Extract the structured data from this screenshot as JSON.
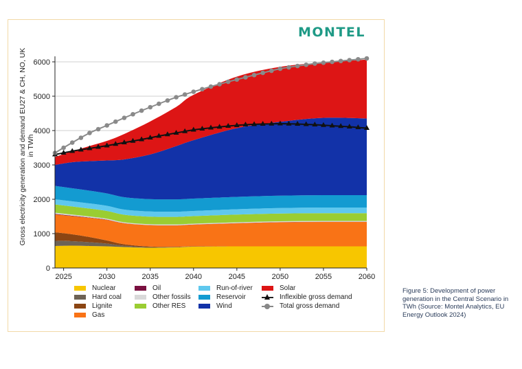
{
  "logo": "MONTEL",
  "caption": "Figure 5: Development of power generation in the Central Scenario in TWh (Source: Montel Analytics, EU Energy Outlook 2024)",
  "colors": {
    "Nuclear": "#f7c600",
    "Hard coal": "#6d6255",
    "Lignite": "#8b4513",
    "Gas": "#f97316",
    "Oil": "#7a1040",
    "Other fossils": "#d9d9d9",
    "Other RES": "#9acd32",
    "Run-of-river": "#5fc8ee",
    "Reservoir": "#139bd1",
    "Wind": "#1232a8",
    "Solar": "#dd1515",
    "Inflexible gross demand": "#111111",
    "Total gross demand": "#8a8a8a"
  },
  "legend": [
    [
      "Nuclear",
      "Hard coal",
      "Lignite",
      "Gas"
    ],
    [
      "Oil",
      "Other fossils",
      "Other RES"
    ],
    [
      "Run-of-river",
      "Reservoir",
      "Wind"
    ],
    [
      "Solar",
      "Inflexible gross demand",
      "Total gross demand"
    ]
  ],
  "chart_data": {
    "type": "area",
    "title": "",
    "xlabel": "",
    "ylabel": "Gross electricity generation and demand EU27 & CH, NO, UK in TWh",
    "xlim": [
      2024,
      2060
    ],
    "ylim": [
      0,
      6000
    ],
    "xticks": [
      2025,
      2030,
      2035,
      2040,
      2045,
      2050,
      2055,
      2060
    ],
    "yticks": [
      0,
      1000,
      2000,
      3000,
      4000,
      5000,
      6000
    ],
    "grid": "horizontal",
    "legend_position": "bottom",
    "x": [
      2024,
      2026,
      2028,
      2030,
      2032,
      2035,
      2038,
      2040,
      2045,
      2050,
      2055,
      2060
    ],
    "stacked_series": [
      {
        "name": "Nuclear",
        "values": [
          640,
          650,
          640,
          630,
          610,
          590,
          600,
          620,
          630,
          630,
          630,
          630
        ]
      },
      {
        "name": "Hard coal",
        "values": [
          150,
          130,
          110,
          80,
          40,
          15,
          8,
          5,
          0,
          0,
          0,
          0
        ]
      },
      {
        "name": "Lignite",
        "values": [
          250,
          200,
          150,
          90,
          40,
          20,
          10,
          5,
          0,
          0,
          0,
          0
        ]
      },
      {
        "name": "Gas",
        "values": [
          520,
          530,
          560,
          600,
          610,
          620,
          620,
          630,
          670,
          700,
          710,
          710
        ]
      },
      {
        "name": "Oil",
        "values": [
          15,
          12,
          10,
          8,
          6,
          5,
          5,
          5,
          5,
          5,
          5,
          5
        ]
      },
      {
        "name": "Other fossils",
        "values": [
          35,
          33,
          30,
          27,
          25,
          25,
          25,
          25,
          25,
          25,
          25,
          25
        ]
      },
      {
        "name": "Other RES",
        "values": [
          240,
          235,
          230,
          225,
          220,
          220,
          220,
          220,
          225,
          225,
          225,
          225
        ]
      },
      {
        "name": "Run-of-river",
        "values": [
          150,
          150,
          150,
          150,
          150,
          150,
          150,
          150,
          155,
          160,
          165,
          165
        ]
      },
      {
        "name": "Reservoir",
        "values": [
          390,
          380,
          370,
          360,
          360,
          360,
          360,
          360,
          360,
          360,
          360,
          360
        ]
      },
      {
        "name": "Wind",
        "values": [
          610,
          760,
          860,
          960,
          1100,
          1300,
          1550,
          1700,
          2000,
          2150,
          2250,
          2230
        ]
      },
      {
        "name": "Solar",
        "values": [
          230,
          320,
          440,
          570,
          740,
          960,
          1140,
          1320,
          1500,
          1600,
          1610,
          1715
        ]
      }
    ],
    "line_series": [
      {
        "name": "Inflexible gross demand",
        "marker": "triangle",
        "x": [
          2024,
          2026,
          2028,
          2030,
          2032,
          2034,
          2036,
          2038,
          2040,
          2042,
          2044,
          2046,
          2048,
          2050,
          2052,
          2054,
          2056,
          2058,
          2060
        ],
        "values": [
          3300,
          3400,
          3480,
          3560,
          3650,
          3740,
          3840,
          3930,
          4020,
          4080,
          4130,
          4170,
          4190,
          4200,
          4190,
          4170,
          4140,
          4110,
          4070
        ]
      },
      {
        "name": "Total gross demand",
        "marker": "circle",
        "x": [
          2024,
          2026,
          2028,
          2030,
          2032,
          2034,
          2036,
          2038,
          2040,
          2042,
          2044,
          2046,
          2048,
          2050,
          2052,
          2054,
          2056,
          2058,
          2060
        ],
        "values": [
          3350,
          3650,
          3930,
          4150,
          4370,
          4580,
          4780,
          4970,
          5130,
          5280,
          5420,
          5550,
          5680,
          5800,
          5880,
          5950,
          6000,
          6050,
          6100
        ]
      }
    ]
  }
}
